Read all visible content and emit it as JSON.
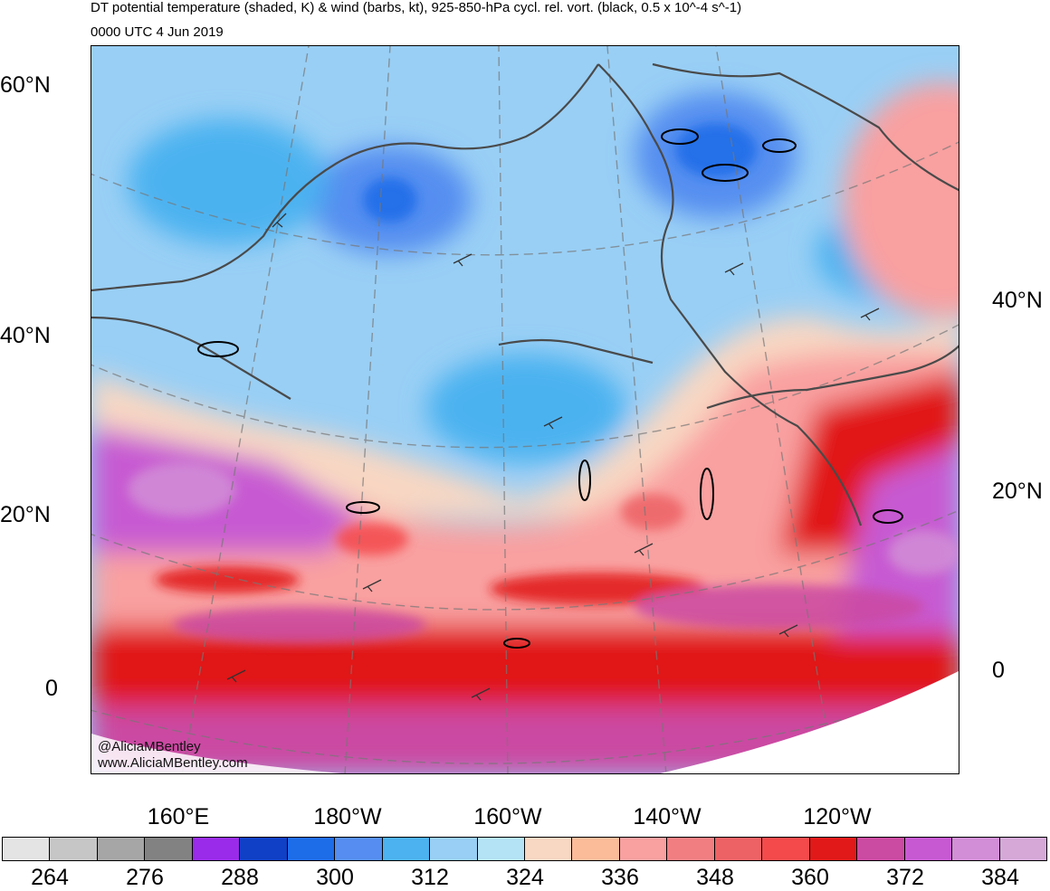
{
  "title": {
    "line1": "DT potential temperature (shaded, K) & wind (barbs, kt), 925-850-hPa cycl. rel. vort. (black, 0.5 x 10^-4 s^-1)",
    "line2": "0000 UTC 4 Jun 2019"
  },
  "lat_labels_left": [
    "60°N",
    "40°N",
    "20°N",
    "0"
  ],
  "lat_labels_right": [
    "40°N",
    "20°N",
    "0"
  ],
  "lon_labels": [
    "160°E",
    "180°W",
    "160°W",
    "140°W",
    "120°W"
  ],
  "credit": {
    "handle": "@AliciaMBentley",
    "website": "www.AliciaMBentley.com"
  },
  "colorbar": {
    "colors": [
      "#e4e4e4",
      "#c6c6c6",
      "#a6a6a6",
      "#828282",
      "#9a2bea",
      "#0f40c6",
      "#1d6ce8",
      "#558ef0",
      "#4cb2f0",
      "#99cff5",
      "#b5e3f6",
      "#f8d7c3",
      "#fbbc9a",
      "#f9a0a0",
      "#f17f82",
      "#ed6265",
      "#f44a4b",
      "#e11919",
      "#cb4aa2",
      "#c75ad2",
      "#d28ed6",
      "#d5a8d8"
    ],
    "labels": [
      "264",
      "276",
      "288",
      "300",
      "312",
      "324",
      "336",
      "348",
      "360",
      "372",
      "384"
    ]
  }
}
